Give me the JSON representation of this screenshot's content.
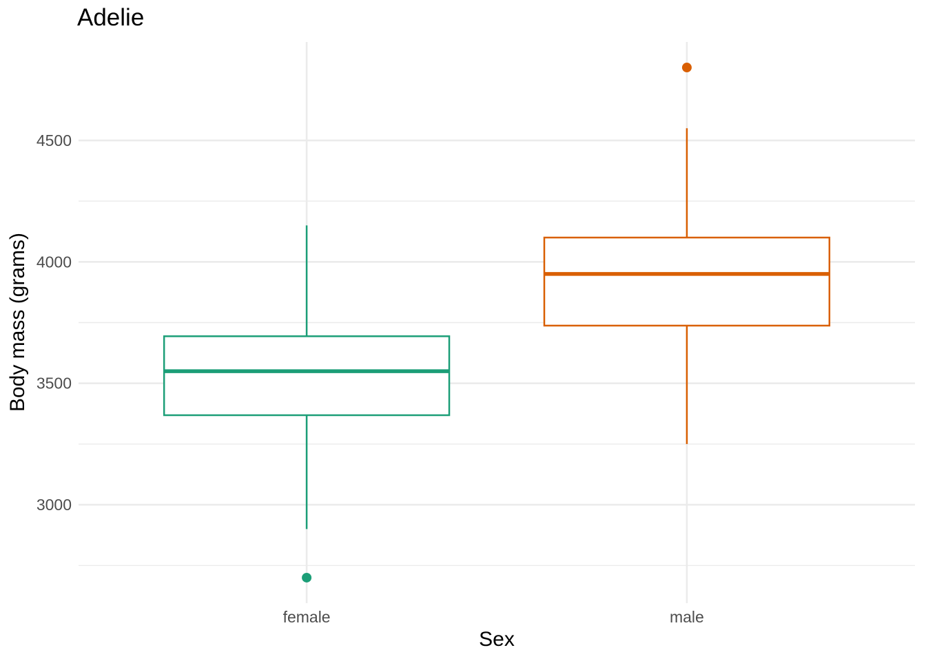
{
  "chart_data": {
    "type": "boxplot",
    "title": "Adelie",
    "xlabel": "Sex",
    "ylabel": "Body mass (grams)",
    "categories": [
      "female",
      "male"
    ],
    "series": [
      {
        "name": "female",
        "color": "#1B9E77",
        "whisker_low": 2900,
        "q1": 3368.75,
        "median": 3550,
        "q3": 3693.75,
        "whisker_high": 4150,
        "outliers": [
          2700
        ]
      },
      {
        "name": "male",
        "color": "#D95F02",
        "whisker_low": 3250,
        "q1": 3737.5,
        "median": 3950,
        "q3": 4100,
        "whisker_high": 4550,
        "outliers": [
          4800
        ]
      }
    ],
    "y_axis": {
      "ticks": [
        3000,
        3500,
        4000,
        4500
      ],
      "tick_labels": [
        "3000",
        "3500",
        "4000",
        "4500"
      ],
      "minor_ticks": [
        2750,
        3250,
        3750,
        4250
      ],
      "range": [
        2595,
        4905
      ]
    },
    "x_axis": {
      "tick_labels": [
        "female",
        "male"
      ]
    },
    "grid": true,
    "legend_position": "none",
    "style": {
      "grid_color": "#EBEBEB",
      "tick_label_color": "#4D4D4D",
      "text_color": "#000000",
      "background": "#FFFFFF"
    }
  }
}
